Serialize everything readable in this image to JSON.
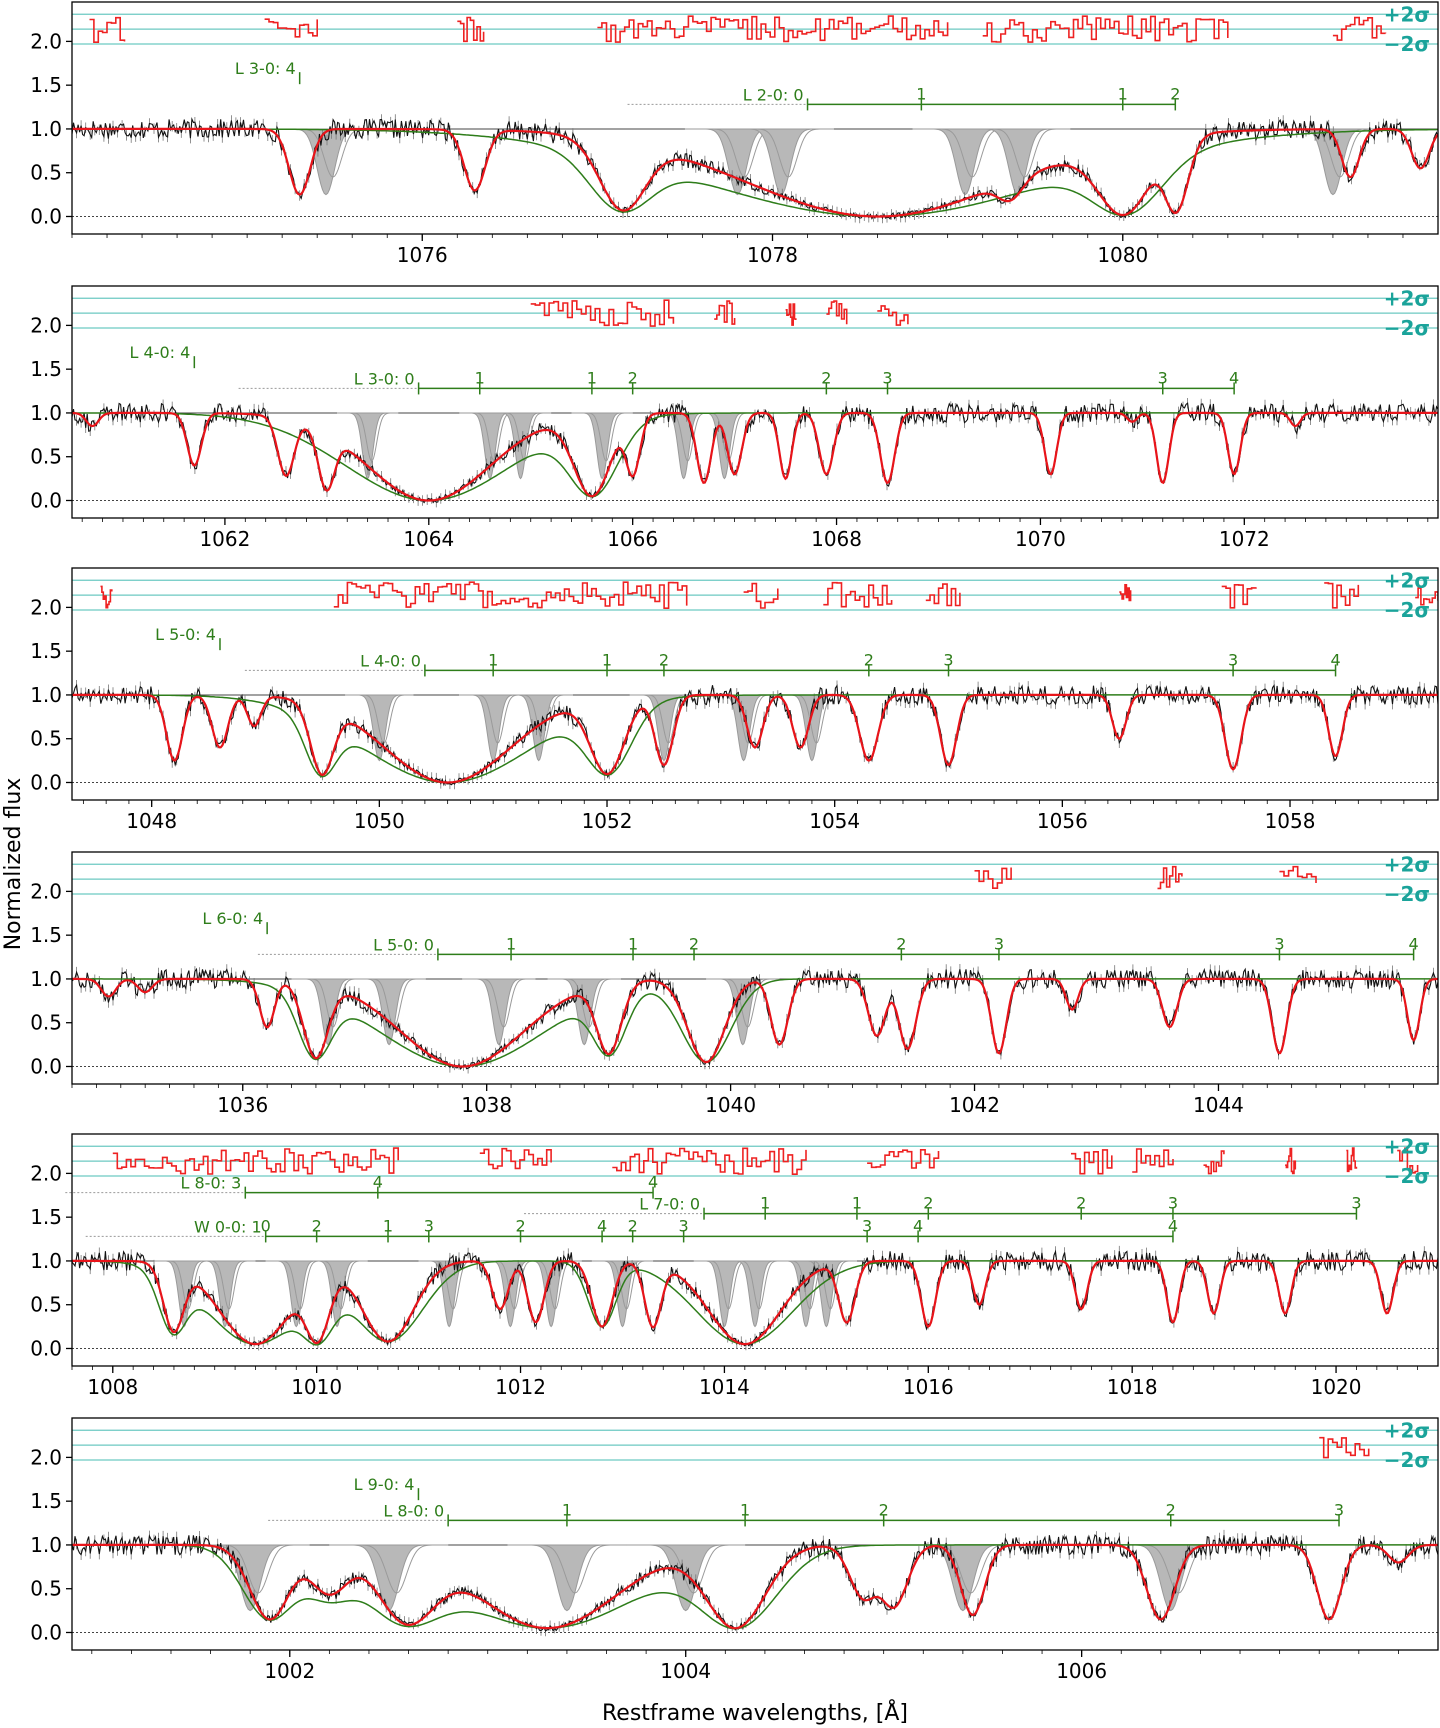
{
  "figure": {
    "ylabel": "Normalized flux",
    "xlabel": "Restframe wavelengths, [Å]",
    "sigma_labels": [
      "+2σ",
      "−2σ"
    ]
  },
  "colors": {
    "data": "#111111",
    "model": "#e8141a",
    "component": "#2e7d1a",
    "profiles": "#9a9a9a",
    "residuals": "#ee2222",
    "sigma_lines": "#6cc9c2",
    "labels": "#2e7d1a"
  },
  "chart_data": [
    {
      "type": "line",
      "xlim": [
        1074.0,
        1081.8
      ],
      "ylim": [
        -0.2,
        2.45
      ],
      "xticks": [
        1076,
        1078,
        1080
      ],
      "yticks": [
        0.0,
        0.5,
        1.0,
        1.5,
        2.0
      ],
      "lines": [
        {
          "label": "L 3-0: 4",
          "level": 1.58,
          "ticks": [
            {
              "x": 1075.3,
              "t": ""
            }
          ]
        },
        {
          "label": "L 2-0: 0",
          "level": 1.28,
          "start": 1078.2,
          "end": 1080.3,
          "ticks": [
            {
              "x": 1078.2,
              "t": ""
            },
            {
              "x": 1078.85,
              "t": "1"
            },
            {
              "x": 1080.0,
              "t": "1"
            },
            {
              "x": 1080.3,
              "t": "2"
            }
          ]
        }
      ],
      "absorptions": [
        {
          "c": 1075.3,
          "d": 0.75,
          "w": 0.06
        },
        {
          "c": 1076.3,
          "d": 0.7,
          "w": 0.06
        },
        {
          "c": 1077.15,
          "d": 0.92,
          "w": 0.13
        },
        {
          "c": 1078.6,
          "d": 1.0,
          "w": 0.75
        },
        {
          "c": 1079.35,
          "d": 0.55,
          "w": 0.07
        },
        {
          "c": 1080.0,
          "d": 0.98,
          "w": 0.15
        },
        {
          "c": 1080.3,
          "d": 0.95,
          "w": 0.07
        },
        {
          "c": 1081.3,
          "d": 0.55,
          "w": 0.05
        },
        {
          "c": 1081.7,
          "d": 0.45,
          "w": 0.05
        }
      ],
      "grey": [
        1075.45,
        1077.8,
        1078.05,
        1079.1,
        1079.4,
        1081.2
      ],
      "residual_segments": [
        [
          1074.1,
          1074.3
        ],
        [
          1075.1,
          1075.4
        ],
        [
          1076.2,
          1076.35
        ],
        [
          1077.0,
          1079.0
        ],
        [
          1079.2,
          1080.6
        ],
        [
          1081.2,
          1081.5
        ]
      ]
    },
    {
      "type": "line",
      "xlim": [
        1060.5,
        1073.9
      ],
      "ylim": [
        -0.2,
        2.45
      ],
      "xticks": [
        1062,
        1064,
        1066,
        1068,
        1070,
        1072
      ],
      "yticks": [
        0.0,
        0.5,
        1.0,
        1.5,
        2.0
      ],
      "lines": [
        {
          "label": "L 4-0: 4",
          "level": 1.58,
          "ticks": [
            {
              "x": 1061.7,
              "t": ""
            }
          ]
        },
        {
          "label": "L 3-0: 0",
          "level": 1.28,
          "start": 1063.9,
          "end": 1071.9,
          "ticks": [
            {
              "x": 1063.9,
              "t": ""
            },
            {
              "x": 1064.5,
              "t": "1"
            },
            {
              "x": 1065.6,
              "t": "1"
            },
            {
              "x": 1066.0,
              "t": "2"
            },
            {
              "x": 1067.9,
              "t": "2"
            },
            {
              "x": 1068.5,
              "t": "3"
            },
            {
              "x": 1071.2,
              "t": "3"
            },
            {
              "x": 1071.9,
              "t": "4"
            }
          ]
        }
      ],
      "absorptions": [
        {
          "c": 1060.7,
          "d": 0.15,
          "w": 0.06
        },
        {
          "c": 1061.7,
          "d": 0.6,
          "w": 0.07
        },
        {
          "c": 1062.6,
          "d": 0.7,
          "w": 0.08
        },
        {
          "c": 1063.0,
          "d": 0.85,
          "w": 0.08
        },
        {
          "c": 1064.0,
          "d": 1.0,
          "w": 0.6
        },
        {
          "c": 1065.6,
          "d": 0.95,
          "w": 0.18
        },
        {
          "c": 1066.0,
          "d": 0.7,
          "w": 0.07
        },
        {
          "c": 1066.7,
          "d": 0.8,
          "w": 0.07
        },
        {
          "c": 1067.0,
          "d": 0.7,
          "w": 0.07
        },
        {
          "c": 1067.5,
          "d": 0.75,
          "w": 0.06
        },
        {
          "c": 1067.9,
          "d": 0.7,
          "w": 0.07
        },
        {
          "c": 1068.5,
          "d": 0.8,
          "w": 0.07
        },
        {
          "c": 1070.1,
          "d": 0.7,
          "w": 0.06
        },
        {
          "c": 1070.9,
          "d": 0.1,
          "w": 0.05
        },
        {
          "c": 1071.2,
          "d": 0.8,
          "w": 0.06
        },
        {
          "c": 1071.9,
          "d": 0.7,
          "w": 0.06
        },
        {
          "c": 1072.5,
          "d": 0.15,
          "w": 0.05
        }
      ],
      "grey": [
        1063.4,
        1064.6,
        1064.9,
        1065.7,
        1066.5,
        1066.9
      ],
      "residual_segments": [
        [
          1065.0,
          1066.4
        ],
        [
          1066.8,
          1067.0
        ],
        [
          1067.5,
          1067.6
        ],
        [
          1067.9,
          1068.1
        ],
        [
          1068.4,
          1068.7
        ]
      ]
    },
    {
      "type": "line",
      "xlim": [
        1047.3,
        1059.3
      ],
      "ylim": [
        -0.2,
        2.45
      ],
      "xticks": [
        1048,
        1050,
        1052,
        1054,
        1056,
        1058
      ],
      "yticks": [
        0.0,
        0.5,
        1.0,
        1.5,
        2.0
      ],
      "lines": [
        {
          "label": "L 5-0: 4",
          "level": 1.58,
          "ticks": [
            {
              "x": 1048.6,
              "t": ""
            }
          ]
        },
        {
          "label": "L 4-0: 0",
          "level": 1.28,
          "start": 1050.4,
          "end": 1058.4,
          "ticks": [
            {
              "x": 1050.4,
              "t": ""
            },
            {
              "x": 1051.0,
              "t": "1"
            },
            {
              "x": 1052.0,
              "t": "1"
            },
            {
              "x": 1052.5,
              "t": "2"
            },
            {
              "x": 1054.3,
              "t": "2"
            },
            {
              "x": 1055.0,
              "t": "3"
            },
            {
              "x": 1057.5,
              "t": "3"
            },
            {
              "x": 1058.4,
              "t": "4"
            }
          ]
        }
      ],
      "absorptions": [
        {
          "c": 1048.2,
          "d": 0.75,
          "w": 0.07
        },
        {
          "c": 1048.6,
          "d": 0.6,
          "w": 0.07
        },
        {
          "c": 1048.9,
          "d": 0.35,
          "w": 0.06
        },
        {
          "c": 1049.5,
          "d": 0.9,
          "w": 0.1
        },
        {
          "c": 1050.6,
          "d": 1.0,
          "w": 0.55
        },
        {
          "c": 1052.0,
          "d": 0.9,
          "w": 0.15
        },
        {
          "c": 1052.5,
          "d": 0.8,
          "w": 0.08
        },
        {
          "c": 1053.3,
          "d": 0.6,
          "w": 0.07
        },
        {
          "c": 1053.7,
          "d": 0.6,
          "w": 0.07
        },
        {
          "c": 1054.3,
          "d": 0.75,
          "w": 0.08
        },
        {
          "c": 1055.0,
          "d": 0.8,
          "w": 0.07
        },
        {
          "c": 1056.5,
          "d": 0.5,
          "w": 0.06
        },
        {
          "c": 1057.5,
          "d": 0.85,
          "w": 0.07
        },
        {
          "c": 1058.4,
          "d": 0.7,
          "w": 0.06
        }
      ],
      "grey": [
        1050.0,
        1051.0,
        1051.4,
        1052.5,
        1053.2,
        1053.8
      ],
      "residual_segments": [
        [
          1047.55,
          1047.65
        ],
        [
          1049.6,
          1052.7
        ],
        [
          1053.2,
          1053.5
        ],
        [
          1053.9,
          1054.5
        ],
        [
          1054.8,
          1055.1
        ],
        [
          1056.5,
          1056.6
        ],
        [
          1057.4,
          1057.7
        ],
        [
          1058.3,
          1058.6
        ],
        [
          1059.1,
          1059.3
        ]
      ]
    },
    {
      "type": "line",
      "xlim": [
        1034.6,
        1045.8
      ],
      "ylim": [
        -0.2,
        2.45
      ],
      "xticks": [
        1036,
        1038,
        1040,
        1042,
        1044
      ],
      "yticks": [
        0.0,
        0.5,
        1.0,
        1.5,
        2.0
      ],
      "lines": [
        {
          "label": "L 6-0: 4",
          "level": 1.58,
          "ticks": [
            {
              "x": 1036.2,
              "t": ""
            }
          ]
        },
        {
          "label": "L 5-0: 0",
          "level": 1.28,
          "start": 1037.6,
          "end": 1045.6,
          "ticks": [
            {
              "x": 1037.6,
              "t": ""
            },
            {
              "x": 1038.2,
              "t": "1"
            },
            {
              "x": 1039.2,
              "t": "1"
            },
            {
              "x": 1039.7,
              "t": "2"
            },
            {
              "x": 1041.4,
              "t": "2"
            },
            {
              "x": 1042.2,
              "t": "3"
            },
            {
              "x": 1044.5,
              "t": "3"
            },
            {
              "x": 1045.6,
              "t": "4"
            }
          ]
        }
      ],
      "absorptions": [
        {
          "c": 1034.9,
          "d": 0.2,
          "w": 0.06
        },
        {
          "c": 1035.2,
          "d": 0.15,
          "w": 0.06
        },
        {
          "c": 1036.2,
          "d": 0.55,
          "w": 0.06
        },
        {
          "c": 1036.6,
          "d": 0.9,
          "w": 0.1
        },
        {
          "c": 1037.8,
          "d": 1.0,
          "w": 0.5
        },
        {
          "c": 1039.0,
          "d": 0.85,
          "w": 0.1
        },
        {
          "c": 1039.8,
          "d": 0.95,
          "w": 0.15
        },
        {
          "c": 1040.4,
          "d": 0.75,
          "w": 0.07
        },
        {
          "c": 1041.2,
          "d": 0.65,
          "w": 0.07
        },
        {
          "c": 1041.45,
          "d": 0.8,
          "w": 0.07
        },
        {
          "c": 1042.2,
          "d": 0.85,
          "w": 0.06
        },
        {
          "c": 1042.8,
          "d": 0.35,
          "w": 0.05
        },
        {
          "c": 1043.6,
          "d": 0.55,
          "w": 0.06
        },
        {
          "c": 1044.5,
          "d": 0.85,
          "w": 0.06
        },
        {
          "c": 1045.6,
          "d": 0.7,
          "w": 0.05
        }
      ],
      "grey": [
        1036.7,
        1037.2,
        1038.1,
        1038.8,
        1040.1
      ],
      "residual_segments": [
        [
          1042.0,
          1042.3
        ],
        [
          1043.5,
          1043.7
        ],
        [
          1044.5,
          1044.8
        ]
      ]
    },
    {
      "type": "line",
      "xlim": [
        1007.6,
        1021.0
      ],
      "ylim": [
        -0.2,
        2.45
      ],
      "xticks": [
        1008,
        1010,
        1012,
        1014,
        1016,
        1018,
        1020
      ],
      "yticks": [
        0.0,
        0.5,
        1.0,
        1.5,
        2.0
      ],
      "lines": [
        {
          "label": "L 8-0: 3",
          "level": 1.78,
          "start": 1009.3,
          "end": 1013.3,
          "ticks": [
            {
              "x": 1009.3,
              "t": ""
            },
            {
              "x": 1010.6,
              "t": "4"
            },
            {
              "x": 1013.3,
              "t": "4"
            }
          ]
        },
        {
          "label": "L 7-0: 0",
          "level": 1.54,
          "start": 1013.8,
          "end": 1020.2,
          "ticks": [
            {
              "x": 1013.8,
              "t": ""
            },
            {
              "x": 1014.4,
              "t": "1"
            },
            {
              "x": 1015.3,
              "t": "1"
            },
            {
              "x": 1016.0,
              "t": "2"
            },
            {
              "x": 1017.5,
              "t": "2"
            },
            {
              "x": 1018.4,
              "t": "3"
            },
            {
              "x": 1020.2,
              "t": "3"
            }
          ]
        },
        {
          "label": "W 0-0: 1",
          "level": 1.28,
          "start": 1009.5,
          "end": 1018.4,
          "ticks": [
            {
              "x": 1009.5,
              "t": "0"
            },
            {
              "x": 1010.0,
              "t": "2"
            },
            {
              "x": 1010.7,
              "t": "1"
            },
            {
              "x": 1011.1,
              "t": "3"
            },
            {
              "x": 1012.0,
              "t": "2"
            },
            {
              "x": 1012.8,
              "t": "4"
            },
            {
              "x": 1013.1,
              "t": "2"
            },
            {
              "x": 1013.6,
              "t": "3"
            },
            {
              "x": 1015.4,
              "t": "3"
            },
            {
              "x": 1015.9,
              "t": "4"
            },
            {
              "x": 1018.4,
              "t": "4"
            }
          ]
        }
      ],
      "absorptions": [
        {
          "c": 1008.6,
          "d": 0.8,
          "w": 0.1
        },
        {
          "c": 1009.4,
          "d": 0.95,
          "w": 0.35
        },
        {
          "c": 1010.0,
          "d": 0.92,
          "w": 0.12
        },
        {
          "c": 1010.7,
          "d": 0.92,
          "w": 0.25
        },
        {
          "c": 1011.8,
          "d": 0.55,
          "w": 0.08
        },
        {
          "c": 1012.15,
          "d": 0.7,
          "w": 0.08
        },
        {
          "c": 1012.8,
          "d": 0.75,
          "w": 0.1
        },
        {
          "c": 1013.3,
          "d": 0.75,
          "w": 0.08
        },
        {
          "c": 1014.2,
          "d": 0.95,
          "w": 0.35
        },
        {
          "c": 1015.2,
          "d": 0.7,
          "w": 0.08
        },
        {
          "c": 1016.0,
          "d": 0.75,
          "w": 0.07
        },
        {
          "c": 1016.5,
          "d": 0.5,
          "w": 0.06
        },
        {
          "c": 1017.5,
          "d": 0.55,
          "w": 0.06
        },
        {
          "c": 1018.4,
          "d": 0.7,
          "w": 0.06
        },
        {
          "c": 1018.8,
          "d": 0.6,
          "w": 0.06
        },
        {
          "c": 1019.5,
          "d": 0.6,
          "w": 0.06
        },
        {
          "c": 1020.5,
          "d": 0.6,
          "w": 0.06
        }
      ],
      "grey": [
        1008.7,
        1009.1,
        1009.8,
        1010.2,
        1011.3,
        1011.9,
        1012.3,
        1013.0,
        1014.0,
        1014.3,
        1014.8,
        1015.0
      ],
      "residual_segments": [
        [
          1008.0,
          1010.8
        ],
        [
          1011.6,
          1012.3
        ],
        [
          1012.9,
          1014.8
        ],
        [
          1015.4,
          1016.1
        ],
        [
          1017.4,
          1017.8
        ],
        [
          1018.0,
          1018.4
        ],
        [
          1018.7,
          1018.9
        ],
        [
          1019.5,
          1019.6
        ],
        [
          1020.1,
          1020.2
        ],
        [
          1020.6,
          1020.8
        ]
      ]
    },
    {
      "type": "line",
      "xlim": [
        1000.9,
        1007.8
      ],
      "ylim": [
        -0.2,
        2.45
      ],
      "xticks": [
        1002,
        1004,
        1006
      ],
      "yticks": [
        0.0,
        0.5,
        1.0,
        1.5,
        2.0
      ],
      "lines": [
        {
          "label": "L 9-0: 4",
          "level": 1.58,
          "ticks": [
            {
              "x": 1002.65,
              "t": ""
            }
          ]
        },
        {
          "label": "L 8-0: 0",
          "level": 1.28,
          "start": 1002.8,
          "end": 1007.3,
          "ticks": [
            {
              "x": 1002.8,
              "t": ""
            },
            {
              "x": 1003.4,
              "t": "1"
            },
            {
              "x": 1004.3,
              "t": "1"
            },
            {
              "x": 1005.0,
              "t": "2"
            },
            {
              "x": 1006.45,
              "t": "2"
            },
            {
              "x": 1007.3,
              "t": "3"
            }
          ]
        }
      ],
      "absorptions": [
        {
          "c": 1001.9,
          "d": 0.85,
          "w": 0.1
        },
        {
          "c": 1002.2,
          "d": 0.55,
          "w": 0.1
        },
        {
          "c": 1002.6,
          "d": 0.9,
          "w": 0.15
        },
        {
          "c": 1003.3,
          "d": 0.95,
          "w": 0.35
        },
        {
          "c": 1004.25,
          "d": 0.95,
          "w": 0.15
        },
        {
          "c": 1004.9,
          "d": 0.6,
          "w": 0.07
        },
        {
          "c": 1005.05,
          "d": 0.7,
          "w": 0.07
        },
        {
          "c": 1005.45,
          "d": 0.8,
          "w": 0.06
        },
        {
          "c": 1006.4,
          "d": 0.85,
          "w": 0.07
        },
        {
          "c": 1007.25,
          "d": 0.85,
          "w": 0.06
        },
        {
          "c": 1007.6,
          "d": 0.2,
          "w": 0.05
        }
      ],
      "grey": [
        1001.8,
        1002.5,
        1003.4,
        1004.0,
        1005.4,
        1006.45
      ],
      "residual_segments": [
        [
          1007.2,
          1007.45
        ]
      ]
    }
  ]
}
